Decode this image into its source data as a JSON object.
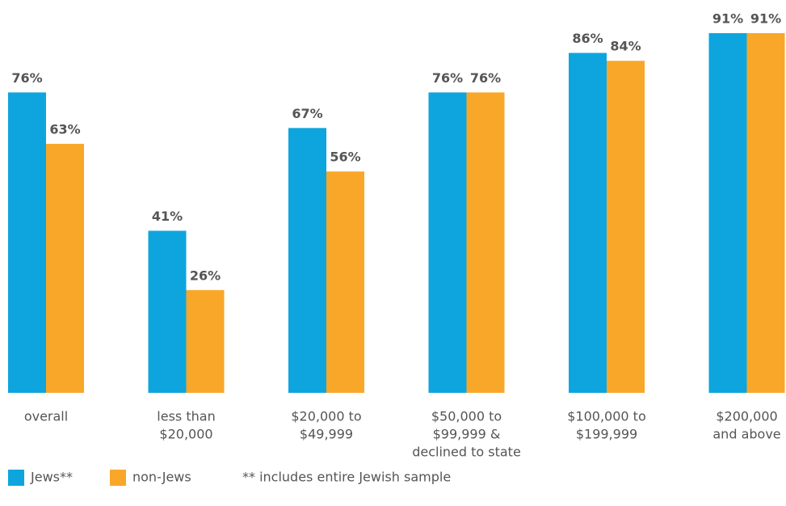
{
  "chart_data": {
    "type": "bar",
    "categories": [
      [
        "overall"
      ],
      [
        "less than",
        "$20,000"
      ],
      [
        "$20,000 to",
        "$49,999"
      ],
      [
        "$50,000 to",
        "$99,999 &",
        "declined to state"
      ],
      [
        "$100,000 to",
        "$199,999"
      ],
      [
        "$200,000",
        "and above"
      ]
    ],
    "series": [
      {
        "name": "Jews**",
        "color": "#0ea5de",
        "values": [
          76,
          41,
          67,
          76,
          86,
          91
        ],
        "value_labels": [
          "76%",
          "41%",
          "67%",
          "76%",
          "86%",
          "91%"
        ]
      },
      {
        "name": "non-Jews",
        "color": "#f9a729",
        "values": [
          63,
          26,
          56,
          76,
          84,
          91
        ],
        "value_labels": [
          "63%",
          "26%",
          "56%",
          "76%",
          "84%",
          "91%"
        ]
      }
    ],
    "note": "** includes entire Jewish sample"
  }
}
